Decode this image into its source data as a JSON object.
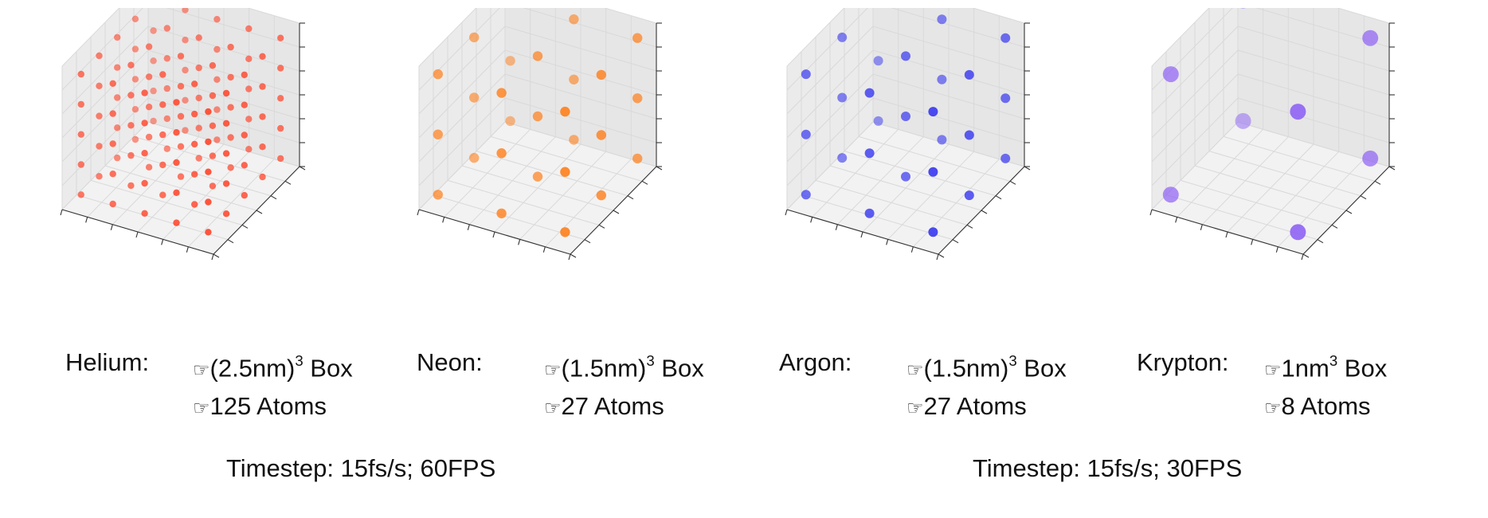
{
  "hand_glyph": "☞",
  "timesteps": [
    {
      "text": "Timestep: 15fs/s; 60FPS"
    },
    {
      "text": "Timestep: 15fs/s; 30FPS"
    }
  ],
  "panels": [
    {
      "element": "Helium",
      "name_label": "Helium:",
      "box_pre": "(2.5nm)",
      "box_sup": "3",
      "box_post": " Box",
      "atoms_text": "125 Atoms",
      "lattice_n": 5,
      "color": "#ff3b1f",
      "radius": 4.2
    },
    {
      "element": "Neon",
      "name_label": "Neon:",
      "box_pre": "(1.5nm)",
      "box_sup": "3",
      "box_post": " Box",
      "atoms_text": "27 Atoms",
      "lattice_n": 3,
      "color": "#ff7a12",
      "radius": 6.2
    },
    {
      "element": "Argon",
      "name_label": "Argon:",
      "box_pre": "(1.5nm)",
      "box_sup": "3",
      "box_post": " Box",
      "atoms_text": "27 Atoms",
      "lattice_n": 3,
      "color": "#2f2ff0",
      "radius": 6.0
    },
    {
      "element": "Krypton",
      "name_label": "Krypton:",
      "box_pre": "1nm",
      "box_sup": "3",
      "box_post": " Box",
      "atoms_text": "8 Atoms",
      "lattice_n": 2,
      "color": "#8a5cf5",
      "radius": 10.0
    }
  ]
}
